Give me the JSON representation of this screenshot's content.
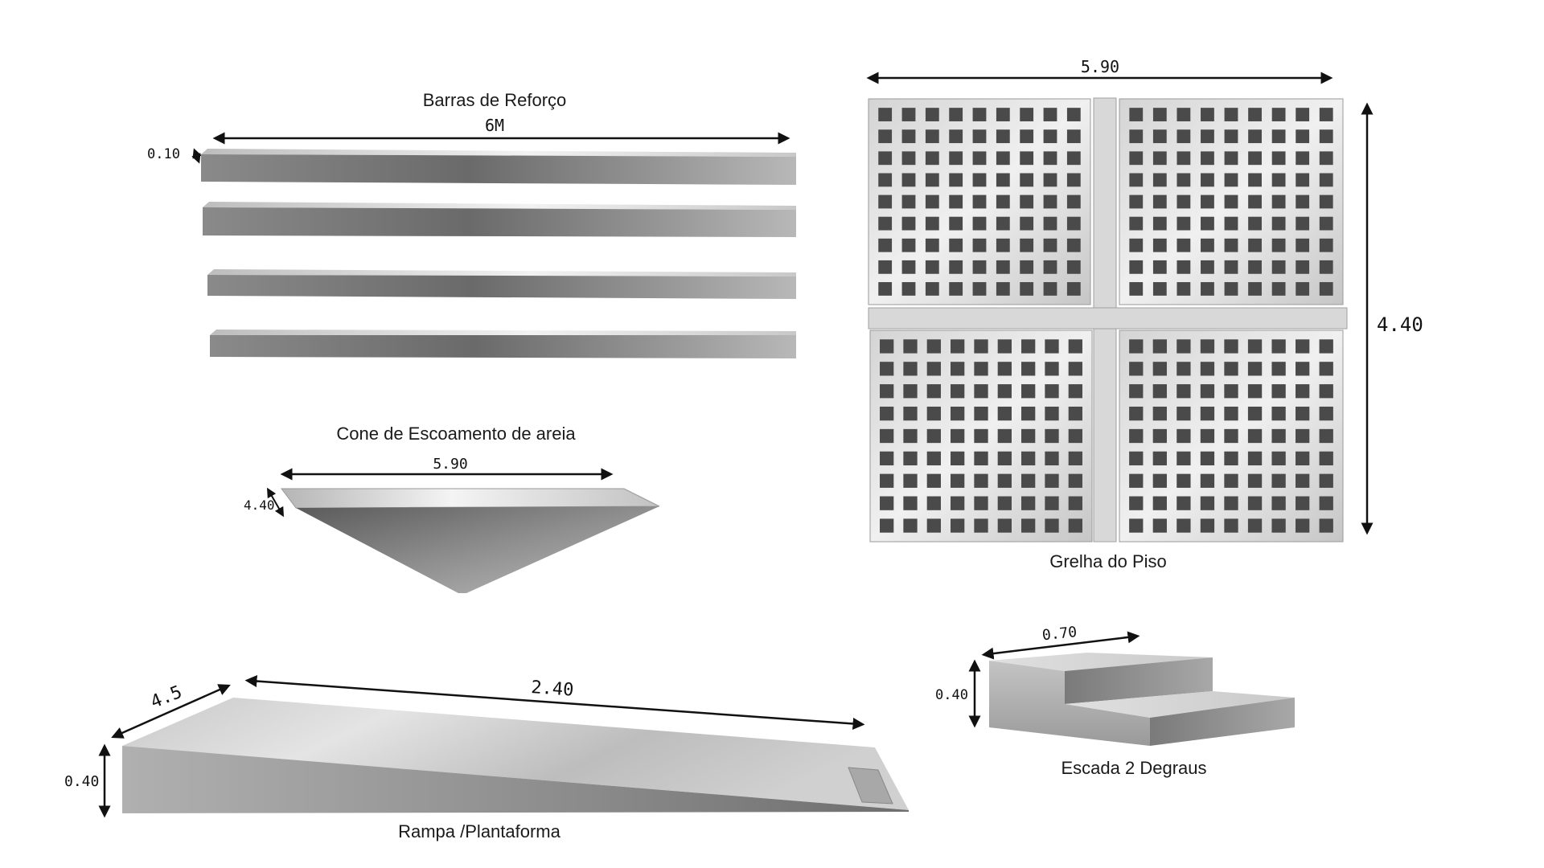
{
  "rebar": {
    "title": "Barras de Reforço",
    "length_label": "6M",
    "thickness_label": "0.10",
    "bar_count": 4
  },
  "cone": {
    "title": "Cone de Escoamento de areia",
    "width_label": "5.90",
    "depth_label": "4.40"
  },
  "grid": {
    "title": "Grelha do Piso",
    "width_label": "5.90",
    "height_label": "4.40",
    "cells_per_quadrant": {
      "cols": 9,
      "rows": 9
    }
  },
  "ramp": {
    "title": "Rampa /Plantaforma",
    "width_label": "4.5",
    "length_label": "2.40",
    "height_label": "0.40"
  },
  "stairs": {
    "title": "Escada 2 Degraus",
    "depth_label": "0.70",
    "height_label": "0.40"
  },
  "colors": {
    "metal_light": "#e6e6e6",
    "metal_mid": "#a9a9a9",
    "metal_dark": "#5f5f5f",
    "hole": "#4a4a4a"
  }
}
